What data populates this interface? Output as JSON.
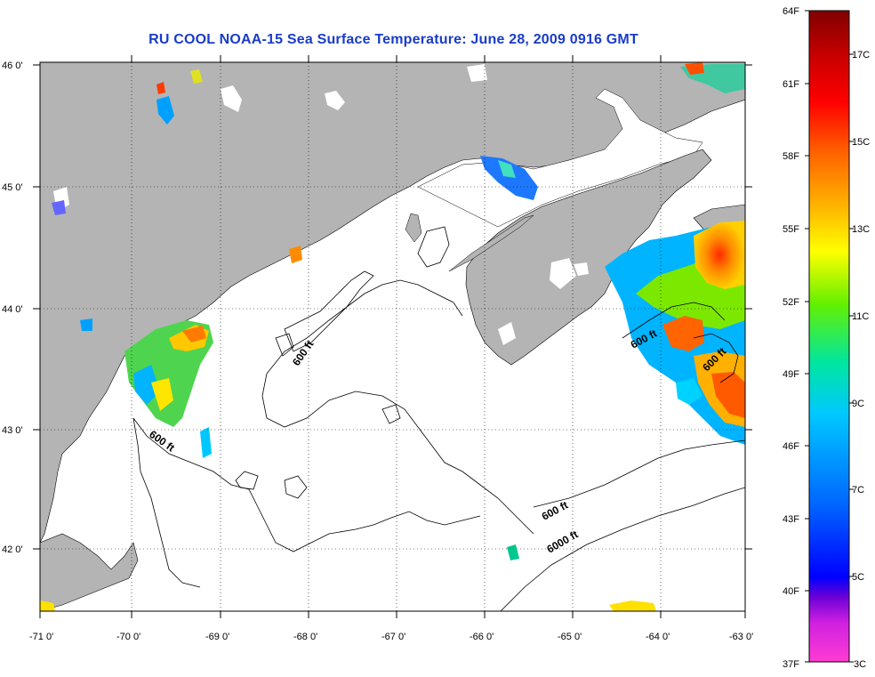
{
  "title": "RU COOL  NOAA-15  Sea Surface Temperature:  June 28, 2009 0916 GMT",
  "map": {
    "lon_ticks": [
      "-71 0'",
      "-70 0'",
      "-69 0'",
      "-68 0'",
      "-67 0'",
      "-66 0'",
      "-65 0'",
      "-64 0'",
      "-63 0'"
    ],
    "lat_ticks": [
      "46 0'",
      "45 0'",
      "44 0'",
      "43 0'",
      "42 0'"
    ],
    "contour_labels": [
      {
        "id": "c600a",
        "text": "600 ft"
      },
      {
        "id": "c600b",
        "text": "600 ft"
      },
      {
        "id": "c600c",
        "text": "600 ft"
      },
      {
        "id": "c600d",
        "text": "600 ft"
      },
      {
        "id": "c600e",
        "text": "600 ft"
      },
      {
        "id": "c6000",
        "text": "6000 ft"
      }
    ],
    "land_color": "#b4b4b4",
    "ocean_color": "#ffffff"
  },
  "colorbar": {
    "fahrenheit_labels": [
      "64F",
      "61F",
      "58F",
      "55F",
      "52F",
      "49F",
      "46F",
      "43F",
      "40F",
      "37F"
    ],
    "celsius_labels": [
      "17C",
      "15C",
      "13C",
      "11C",
      "9C",
      "7C",
      "5C",
      "3C"
    ],
    "stops": [
      "#ff3cd2",
      "#6a00d8",
      "#0000ff",
      "#0064ff",
      "#00c8ff",
      "#00e6a0",
      "#64f000",
      "#ffff00",
      "#ffb400",
      "#ff6400",
      "#ff0000",
      "#c80000",
      "#800000"
    ]
  }
}
